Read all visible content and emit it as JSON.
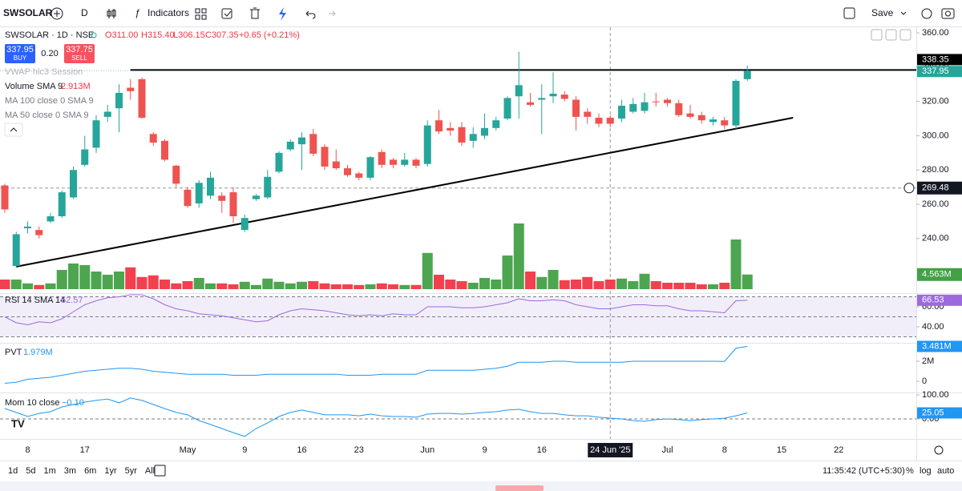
{
  "toolbar": {
    "symbol": "SWSOLAR",
    "interval": "D",
    "indicators": "Indicators",
    "save": "Save"
  },
  "bottom_bar": {
    "ranges": [
      "1d",
      "5d",
      "1m",
      "3m",
      "6m",
      "1yr",
      "5yr",
      "All"
    ],
    "clock": "11:35:42 (UTC+5:30)",
    "percent": "%",
    "log": "log",
    "auto": "auto"
  },
  "chart_data": {
    "type": "candlestick",
    "title": "SWSOLAR · 1D · NSE",
    "ohlc_header": {
      "open": "O311.00",
      "high": "H315.40",
      "low": "L306.15",
      "close": "C307.35",
      "change": "+0.65 (+0.21%)"
    },
    "trade": {
      "buy_price": "337.95",
      "buy": "BUY",
      "spread": "0.20",
      "sell_price": "337.75",
      "sell": "SELL"
    },
    "overlays": [
      "VWAP hlc3 Session",
      "MA 100 close 0 SMA 9",
      "MA 50 close 0 SMA 9"
    ],
    "up_color": "#26a69a",
    "down_color": "#ef5350",
    "open": [
      271,
      224,
      246,
      245,
      250,
      253,
      264,
      283,
      293,
      311,
      316,
      328,
      333,
      301,
      297,
      282.5,
      268.5,
      260.5,
      265,
      265,
      267,
      245,
      263,
      264,
      279,
      292,
      295,
      301,
      293.5,
      285,
      281,
      278,
      275.5,
      290.5,
      286,
      283,
      286,
      283.5,
      309,
      304.5,
      305,
      297,
      300,
      304.5,
      310,
      323,
      319.5,
      321,
      323,
      324,
      321,
      314,
      310.5,
      310.5,
      310,
      314,
      314.5,
      320,
      321,
      319,
      313,
      312,
      308,
      309,
      306,
      333
    ],
    "high": [
      272,
      244,
      250,
      247,
      255,
      268,
      282,
      300,
      312,
      318,
      330,
      333,
      334,
      302,
      298,
      283,
      270,
      274,
      279,
      267,
      270,
      254,
      266,
      280,
      291,
      298,
      302,
      304,
      295,
      292,
      283,
      279,
      288,
      292,
      287,
      290,
      287,
      309,
      315,
      308,
      308,
      305,
      313,
      311,
      323,
      349,
      325,
      330,
      337,
      326,
      323,
      316,
      313,
      312,
      321,
      322,
      325,
      325,
      322,
      321,
      318,
      314,
      311,
      311,
      333,
      341
    ],
    "low": [
      255,
      223,
      243,
      240,
      249,
      252,
      263,
      282,
      290,
      308,
      302,
      321,
      310,
      294,
      285,
      270,
      258,
      258,
      263,
      255,
      249,
      244,
      262,
      263,
      278,
      291,
      280,
      288,
      280,
      280,
      276,
      274,
      274,
      281,
      281,
      282,
      281,
      282,
      301,
      300,
      294,
      293,
      298,
      303,
      309,
      310,
      317,
      301,
      319,
      320,
      303,
      307,
      305,
      305,
      308,
      313,
      313,
      317,
      317,
      311,
      310,
      307,
      306,
      304,
      304,
      332
    ],
    "close": [
      257,
      242.5,
      247,
      242,
      253,
      267,
      280,
      292,
      309,
      314,
      325,
      326,
      310.5,
      296,
      286,
      272,
      259,
      272.5,
      275.5,
      262,
      253,
      252,
      265,
      276,
      290,
      296.5,
      299,
      289.5,
      282,
      281,
      277,
      275.5,
      287.5,
      283,
      283,
      286,
      282.5,
      306,
      302.5,
      303,
      296,
      301,
      304.5,
      309,
      322,
      329.5,
      318,
      322,
      324.5,
      321.5,
      311,
      311,
      307,
      307,
      317.5,
      318.5,
      319.5,
      319.5,
      319,
      312,
      311,
      309,
      309.5,
      306,
      332,
      337.95
    ],
    "ylim": [
      208.6,
      363.3
    ],
    "yticks": [
      {
        "value": 360,
        "label": "360.00"
      },
      {
        "value": 340,
        "label": "340.00"
      },
      {
        "value": 320,
        "label": "320.00"
      },
      {
        "value": 300,
        "label": "300.00"
      },
      {
        "value": 280,
        "label": "280.00"
      },
      {
        "value": 260,
        "label": "260.00"
      },
      {
        "value": 240,
        "label": "240.00"
      }
    ],
    "xticks": [
      {
        "value": 2,
        "label": "8"
      },
      {
        "value": 7,
        "label": "17"
      },
      {
        "value": 16,
        "label": "May"
      },
      {
        "value": 21,
        "label": "9"
      },
      {
        "value": 26,
        "label": "16"
      },
      {
        "value": 31,
        "label": "23"
      },
      {
        "value": 37,
        "label": "Jun"
      },
      {
        "value": 42,
        "label": "9"
      },
      {
        "value": 47,
        "label": "16"
      },
      {
        "value": 58,
        "label": "Jul"
      },
      {
        "value": 63,
        "label": "8"
      },
      {
        "value": 68,
        "label": "15"
      },
      {
        "value": 73,
        "label": "22"
      }
    ],
    "horizontal_line": 338.35,
    "horizontal_line_start": 11,
    "trendline": {
      "x": [
        1,
        69
      ],
      "y": [
        223.6,
        310.5
      ]
    },
    "last_price": 337.95,
    "crosshair": {
      "x": 53,
      "price": 269.48,
      "date_label": "24 Jun '25"
    },
    "volume": {
      "name": "Volume SMA 9",
      "value_label": "2.913M",
      "last_label": "4.563M",
      "ylim": [
        0,
        80
      ],
      "up_color": "#43a047",
      "down_color": "#f23645",
      "values": [
        3.0,
        3.0,
        1.8,
        1.3,
        1.8,
        6.0,
        8.0,
        7.5,
        5.5,
        4.5,
        5.5,
        6.8,
        3.8,
        4.3,
        3.0,
        1.8,
        2.5,
        3.5,
        1.8,
        1.8,
        1.5,
        2.3,
        1.3,
        3.3,
        2.3,
        1.8,
        2.3,
        2.5,
        1.8,
        1.5,
        1.5,
        1.3,
        1.5,
        1.8,
        1.5,
        1.3,
        1.3,
        11.3,
        4.5,
        3.0,
        2.5,
        2.0,
        3.5,
        3.0,
        10.5,
        20.5,
        5.5,
        3.8,
        6.0,
        2.8,
        3.0,
        3.8,
        2.5,
        3.0,
        3.3,
        2.5,
        4.8,
        2.5,
        2.0,
        2.0,
        2.0,
        1.5,
        1.5,
        2.0,
        15.5,
        4.563
      ]
    },
    "rsi": {
      "name": "RSI 14 SMA 14",
      "value_label": "52.57",
      "color": "#9c6ade",
      "ylim": [
        24.8,
        72.8
      ],
      "yticks": [
        {
          "value": 60,
          "label": "60.00"
        },
        {
          "value": 40,
          "label": "40.00"
        }
      ],
      "band": [
        30,
        70
      ],
      "mid": 50,
      "values": [
        50,
        44,
        42,
        45,
        44,
        48,
        55,
        62,
        66,
        69,
        70,
        72,
        72,
        68,
        62,
        58,
        56,
        53,
        52,
        51,
        49,
        47,
        45,
        46,
        52,
        56,
        58,
        57,
        56,
        54,
        52,
        51,
        52,
        51,
        53,
        52,
        52,
        60,
        60,
        60,
        59,
        59,
        60,
        62,
        64,
        68,
        66,
        66,
        67,
        66,
        62,
        60,
        58,
        58,
        60,
        62,
        62,
        61,
        61,
        58,
        56,
        56,
        55,
        54,
        66,
        66.53
      ]
    },
    "pvt": {
      "name": "PVT",
      "value_label": "1.979M",
      "last_label": "3.481M",
      "color": "#2196f3",
      "ylim": [
        -1.04,
        3.76
      ],
      "yticks": [
        {
          "value": 2,
          "label": "2M"
        },
        0
      ],
      "values": [
        -0.2,
        -0.1,
        0.2,
        0.3,
        0.4,
        0.6,
        0.8,
        1.0,
        1.1,
        1.2,
        1.3,
        1.3,
        1.2,
        1.0,
        0.9,
        0.8,
        0.7,
        0.7,
        0.7,
        0.7,
        0.6,
        0.6,
        0.6,
        0.7,
        0.7,
        0.7,
        0.7,
        0.7,
        0.7,
        0.7,
        0.6,
        0.6,
        0.6,
        0.7,
        0.7,
        0.7,
        0.7,
        1.1,
        1.1,
        1.1,
        1.1,
        1.1,
        1.2,
        1.3,
        1.5,
        1.9,
        1.9,
        1.9,
        2.0,
        2.0,
        1.9,
        1.9,
        1.9,
        1.9,
        1.9,
        2.0,
        2.0,
        2.0,
        2.0,
        2.0,
        2.0,
        2.0,
        2.0,
        1.979,
        3.3,
        3.481
      ]
    },
    "mom": {
      "name": "Mom 10 close",
      "value_label": "−0.10",
      "color": "#2196f3",
      "ylim": [
        -80,
        106.7
      ],
      "yticks": [
        {
          "value": 100,
          "label": "100.00"
        },
        {
          "value": 0,
          "label": "0.00"
        }
      ],
      "values": [
        43,
        27,
        10,
        23,
        30,
        50,
        60,
        70,
        77,
        83,
        67,
        87,
        77,
        60,
        43,
        27,
        17,
        -7,
        -23,
        -40,
        -57,
        -73,
        -40,
        -17,
        10,
        27,
        37,
        27,
        17,
        17,
        17,
        13,
        20,
        13,
        10,
        10,
        7,
        20,
        23,
        23,
        20,
        23,
        27,
        30,
        37,
        40,
        30,
        23,
        23,
        17,
        13,
        13,
        7,
        3,
        0,
        -7,
        -10,
        -3,
        0,
        -3,
        -7,
        -3,
        0,
        3,
        13,
        25.05
      ]
    }
  }
}
